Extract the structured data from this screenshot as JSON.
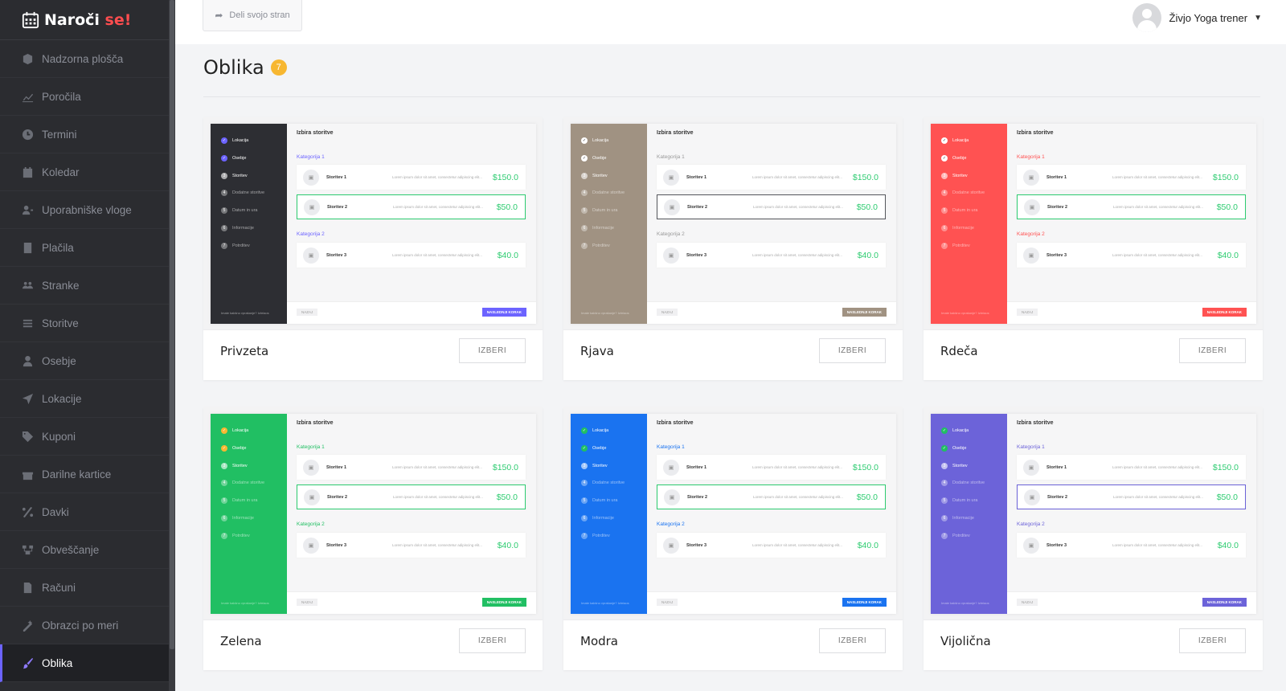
{
  "brand": {
    "name_main": "Naroči ",
    "name_accent": "se!"
  },
  "sidebar": {
    "items": [
      {
        "label": "Nadzorna plošča",
        "icon": "cube-icon"
      },
      {
        "label": "Poročila",
        "icon": "chart-icon"
      },
      {
        "label": "Termini",
        "icon": "clock-icon"
      },
      {
        "label": "Koledar",
        "icon": "calendar-icon"
      },
      {
        "label": "Uporabniške vloge",
        "icon": "user-roles-icon"
      },
      {
        "label": "Plačila",
        "icon": "payments-icon"
      },
      {
        "label": "Stranke",
        "icon": "customers-icon"
      },
      {
        "label": "Storitve",
        "icon": "services-icon"
      },
      {
        "label": "Osebje",
        "icon": "staff-icon"
      },
      {
        "label": "Lokacije",
        "icon": "location-arrow-icon"
      },
      {
        "label": "Kuponi",
        "icon": "tag-icon"
      },
      {
        "label": "Darilne kartice",
        "icon": "gift-icon"
      },
      {
        "label": "Davki",
        "icon": "percent-icon"
      },
      {
        "label": "Obveščanje",
        "icon": "notification-icon"
      },
      {
        "label": "Računi",
        "icon": "invoice-icon"
      },
      {
        "label": "Obrazci po meri",
        "icon": "custom-forms-icon"
      },
      {
        "label": "Oblika",
        "icon": "brush-icon",
        "active": true
      }
    ]
  },
  "topbar": {
    "share_label": "Deli svojo stran",
    "user_name": "Živjo Yoga trener"
  },
  "page": {
    "title": "Oblika",
    "badge": "7"
  },
  "preview": {
    "heading": "Izbira storitve",
    "steps": [
      "Lokacija",
      "Osebje",
      "Storitev",
      "Dodatne storitve",
      "Datum in ura",
      "Informacije",
      "Potrditev"
    ],
    "footer_note": "Imate kakšno vprašanje? Izbriaos",
    "category1": "Kategorija 1",
    "category2": "Kategorija 2",
    "services": [
      {
        "name": "Storitev 1",
        "desc": "Lorem ipsum dolor sit amet, consectetur adipiscing elit...",
        "price": "$150.0"
      },
      {
        "name": "Storitev 2",
        "desc": "Lorem ipsum dolor sit amet, consectetur adipiscing elit...",
        "price": "$50.0"
      },
      {
        "name": "Storitev 3",
        "desc": "Lorem ipsum dolor sit amet, consectetur adipiscing elit...",
        "price": "$40.0"
      }
    ],
    "back": "NAZAJ",
    "next": "NASLEDNJI KORAK"
  },
  "themes": [
    {
      "name": "Privzeta",
      "button": "IZBERI",
      "color": "#2d2e33",
      "accent": "#6c63ff",
      "check": "#6c63ff"
    },
    {
      "name": "Rjava",
      "button": "IZBERI",
      "color": "#a09282",
      "accent": "#a09282",
      "check": "#2d2e33"
    },
    {
      "name": "Rdeča",
      "button": "IZBERI",
      "color": "#ff5252",
      "accent": "#ff5252",
      "check": "#2d2e33"
    },
    {
      "name": "Zelena",
      "button": "IZBERI",
      "color": "#21bf63",
      "accent": "#21bf63",
      "check": "#f7b731"
    },
    {
      "name": "Modra",
      "button": "IZBERI",
      "color": "#1a73f0",
      "accent": "#1a73f0",
      "check": "#21bf63"
    },
    {
      "name": "Vijolična",
      "button": "IZBERI",
      "color": "#6c63d9",
      "accent": "#6c63d9",
      "check": "#21bf63"
    }
  ]
}
